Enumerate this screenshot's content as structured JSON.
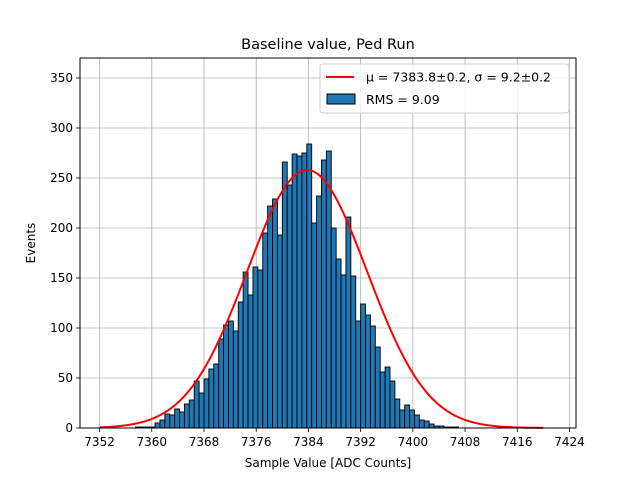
{
  "chart_data": {
    "type": "bar",
    "title": "Baseline value, Ped Run",
    "xlabel": "Sample Value [ADC Counts]",
    "ylabel": "Events",
    "xlim": [
      7349,
      7425
    ],
    "ylim": [
      0,
      370
    ],
    "xticks": [
      7352,
      7360,
      7368,
      7376,
      7384,
      7392,
      7400,
      7408,
      7416,
      7424
    ],
    "yticks": [
      0,
      50,
      100,
      150,
      200,
      250,
      300,
      350
    ],
    "grid": true,
    "legend_position": "top-right",
    "bin_start": 7357.5,
    "bin_width": 0.75,
    "bar_color": "#1f77b4",
    "bar_edge_color": "#000000",
    "fit_color": "#ff0000",
    "counts": [
      1,
      1,
      1,
      1,
      5,
      8,
      14,
      13,
      19,
      16,
      24,
      28,
      47,
      35,
      49,
      59,
      64,
      89,
      103,
      107,
      97,
      126,
      156,
      133,
      161,
      158,
      195,
      222,
      229,
      193,
      266,
      243,
      274,
      272,
      275,
      284,
      205,
      232,
      268,
      277,
      200,
      169,
      153,
      211,
      152,
      107,
      124,
      113,
      102,
      81,
      56,
      61,
      47,
      29,
      18,
      23,
      18,
      13,
      8,
      7,
      4,
      2,
      2,
      1,
      1,
      1
    ],
    "fit": {
      "mu": 7383.8,
      "sigma": 9.2,
      "amplitude": 258
    },
    "legend": [
      {
        "kind": "line",
        "mu_label": "μ = 7383.8±0.2, ",
        "sigma_label": "σ = 9.2±0.2"
      },
      {
        "kind": "bar",
        "label": "RMS = 9.09"
      }
    ]
  }
}
